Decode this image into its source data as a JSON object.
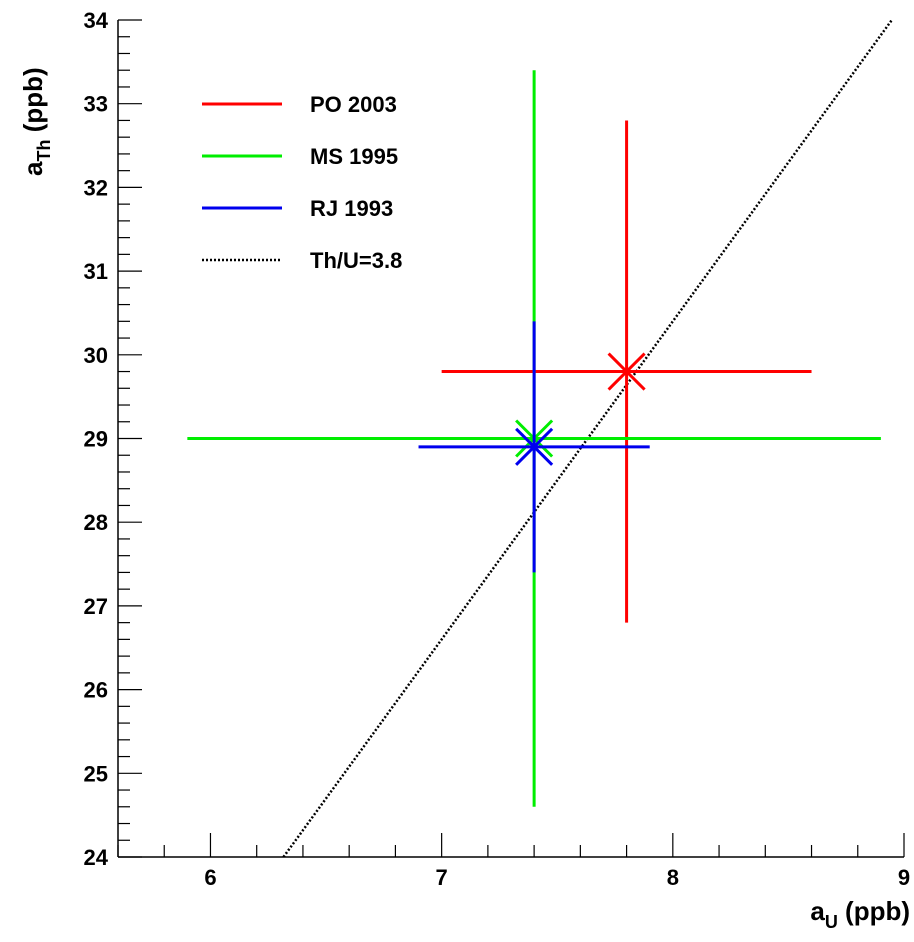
{
  "chart_data": {
    "type": "scatter",
    "xlabel": {
      "main": "a",
      "sub": "U",
      "unit": " (ppb)"
    },
    "ylabel": {
      "main": "a",
      "sub": "Th",
      "unit": " (ppb)"
    },
    "xlim": [
      5.6,
      9.0
    ],
    "ylim": [
      24,
      34
    ],
    "xticks": [
      "6",
      "7",
      "8",
      "9"
    ],
    "yticks": [
      "24",
      "25",
      "26",
      "27",
      "28",
      "29",
      "30",
      "31",
      "32",
      "33",
      "34"
    ],
    "grid": false,
    "legend_position": "top-left",
    "series": [
      {
        "name": "PO 2003",
        "color": "#ff0000",
        "x": 7.8,
        "y": 29.8,
        "x_range": [
          7.0,
          8.6
        ],
        "y_range": [
          26.8,
          32.8
        ]
      },
      {
        "name": "MS 1995",
        "color": "#00ee00",
        "x": 7.4,
        "y": 29.0,
        "x_range": [
          5.9,
          8.9
        ],
        "y_range": [
          24.6,
          33.4
        ]
      },
      {
        "name": "RJ 1993",
        "color": "#0000ee",
        "x": 7.4,
        "y": 28.9,
        "x_range": [
          6.9,
          7.9
        ],
        "y_range": [
          27.4,
          30.4
        ]
      }
    ],
    "reference_line": {
      "name": "Th/U=3.8",
      "ratio": 3.8,
      "color": "#000000",
      "style": "dotted"
    }
  }
}
